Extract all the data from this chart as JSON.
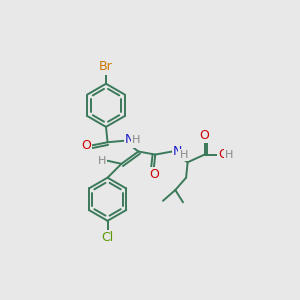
{
  "bg_color": "#e8e8e8",
  "bond_color": "#3a7a5a",
  "bond_width": 1.4,
  "atom_colors": {
    "Br": "#cc7700",
    "Cl": "#5a9a00",
    "N": "#1a1acc",
    "O": "#cc0000",
    "H": "#888888",
    "C": "#3a7a5a"
  }
}
